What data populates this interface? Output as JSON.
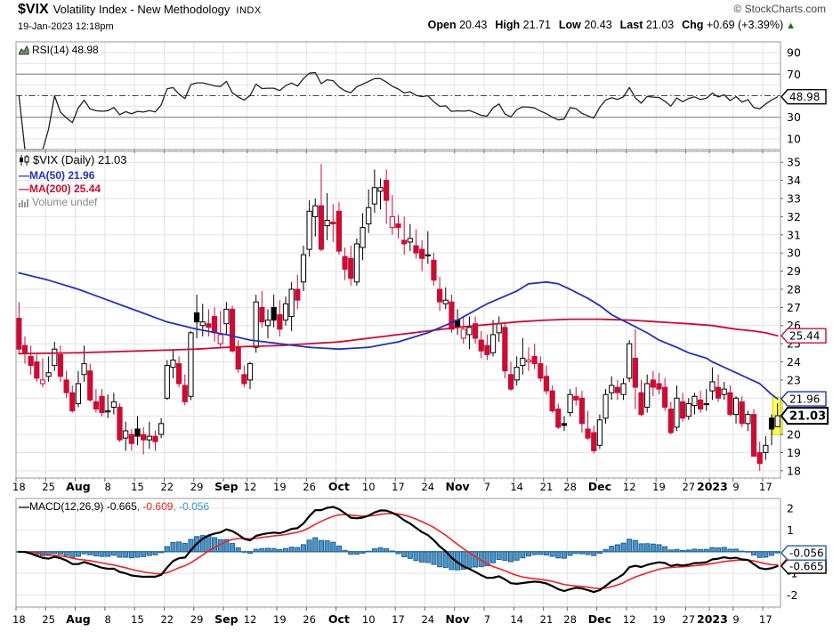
{
  "header": {
    "symbol": "$VIX",
    "title": "Volatility Index - New Methodology",
    "exchange": "INDX",
    "timestamp": "19-Jan-2023 12:18pm",
    "copyright": "© StockCharts.com",
    "quote": {
      "open_label": "Open",
      "open": "20.43",
      "high_label": "High",
      "high": "21.71",
      "low_label": "Low",
      "low": "20.43",
      "last_label": "Last",
      "last": "21.03",
      "chg_label": "Chg",
      "chg": "+0.69 (+3.39%)",
      "arrow": "▲"
    }
  },
  "rsi_panel": {
    "legend": "RSI(14) 48.98",
    "last": "48.98"
  },
  "main_panel": {
    "legend_symbol": "$VIX (Daily) 21.03",
    "legend_ma50": "MA(50) 21.96",
    "legend_ma200": "MA(200) 25.44",
    "legend_volume": "Volume undef",
    "last": "21.03",
    "ma50_last": "21.96",
    "ma200_last": "25.44"
  },
  "macd_panel": {
    "legend_label": "MACD(12,26,9)",
    "macd_last": "-0.665",
    "signal_last": "-0.609",
    "hist_last": "-0.056",
    "sep": ", "
  },
  "colors": {
    "red": "#cc0c35",
    "black": "#000000",
    "blue": "#2233bb",
    "gray": "#888888",
    "grid": "#e2e2e2",
    "frame": "#999999",
    "rsi_band": "#999999",
    "hist_fill": "#4f94c4",
    "hist_stroke": "#1f6397",
    "macd_zero": "#3a7fae",
    "signal_red": "#ee2222",
    "highlight": "#ffff55",
    "highlight_edge": "#cccc00",
    "green": "#0b7a00"
  },
  "chart_data": {
    "type": "candlestick+indicators",
    "symbol": "$VIX",
    "timeframe": "Daily",
    "price_range": [
      17.6,
      35.6
    ],
    "rsi_range": [
      0,
      100
    ],
    "macd_range": [
      -2.55,
      2.45
    ],
    "price_ticks": [
      35,
      34,
      33,
      32,
      31,
      30,
      29,
      28,
      27,
      26,
      25,
      24,
      23,
      22,
      21,
      20,
      19,
      18
    ],
    "rsi_ticks": [
      90,
      70,
      30,
      10
    ],
    "rsi_lines": {
      "overbought": 70,
      "oversold": 30,
      "mid": 50
    },
    "macd_ticks": [
      2,
      1,
      -1,
      -2
    ],
    "axis_labels": {
      "rsi": "48.98",
      "ma200": "25.44",
      "ma50": "21.96",
      "last": "21.03",
      "hist": "-0.056",
      "signal": "-0.609",
      "macd": "-0.665"
    },
    "indicator_params": {
      "rsi": 14,
      "ma_fast": 50,
      "ma_slow": 200,
      "macd": [
        12,
        26,
        9
      ]
    },
    "highlight_last": true,
    "xticks": [
      {
        "i": 0,
        "label": "18",
        "bold": false
      },
      {
        "i": 5,
        "label": "25",
        "bold": false
      },
      {
        "i": 10,
        "label": "Aug",
        "bold": true
      },
      {
        "i": 15,
        "label": "8",
        "bold": false
      },
      {
        "i": 20,
        "label": "15",
        "bold": false
      },
      {
        "i": 25,
        "label": "22",
        "bold": false
      },
      {
        "i": 30,
        "label": "29",
        "bold": false
      },
      {
        "i": 35,
        "label": "Sep",
        "bold": true
      },
      {
        "i": 39,
        "label": "12",
        "bold": false
      },
      {
        "i": 44,
        "label": "19",
        "bold": false
      },
      {
        "i": 49,
        "label": "26",
        "bold": false
      },
      {
        "i": 54,
        "label": "Oct",
        "bold": true
      },
      {
        "i": 59,
        "label": "10",
        "bold": false
      },
      {
        "i": 64,
        "label": "17",
        "bold": false
      },
      {
        "i": 69,
        "label": "24",
        "bold": false
      },
      {
        "i": 74,
        "label": "Nov",
        "bold": true
      },
      {
        "i": 79,
        "label": "7",
        "bold": false
      },
      {
        "i": 84,
        "label": "14",
        "bold": false
      },
      {
        "i": 89,
        "label": "21",
        "bold": false
      },
      {
        "i": 93,
        "label": "28",
        "bold": false
      },
      {
        "i": 98,
        "label": "Dec",
        "bold": true
      },
      {
        "i": 103,
        "label": "12",
        "bold": false
      },
      {
        "i": 108,
        "label": "19",
        "bold": false
      },
      {
        "i": 113,
        "label": "27",
        "bold": false
      },
      {
        "i": 117,
        "label": "2023",
        "bold": true
      },
      {
        "i": 121,
        "label": "9",
        "bold": false
      },
      {
        "i": 126,
        "label": "17",
        "bold": false
      }
    ],
    "dates": [
      "07-18",
      "07-19",
      "07-20",
      "07-21",
      "07-22",
      "07-25",
      "07-26",
      "07-27",
      "07-28",
      "07-29",
      "08-01",
      "08-02",
      "08-03",
      "08-04",
      "08-05",
      "08-08",
      "08-09",
      "08-10",
      "08-11",
      "08-12",
      "08-15",
      "08-16",
      "08-17",
      "08-18",
      "08-19",
      "08-22",
      "08-23",
      "08-24",
      "08-25",
      "08-26",
      "08-29",
      "08-30",
      "08-31",
      "09-01",
      "09-02",
      "09-06",
      "09-07",
      "09-08",
      "09-09",
      "09-12",
      "09-13",
      "09-14",
      "09-15",
      "09-16",
      "09-19",
      "09-20",
      "09-21",
      "09-22",
      "09-23",
      "09-26",
      "09-27",
      "09-28",
      "09-29",
      "09-30",
      "10-03",
      "10-04",
      "10-05",
      "10-06",
      "10-07",
      "10-10",
      "10-11",
      "10-12",
      "10-13",
      "10-14",
      "10-17",
      "10-18",
      "10-19",
      "10-20",
      "10-21",
      "10-24",
      "10-25",
      "10-26",
      "10-27",
      "10-28",
      "10-31",
      "11-01",
      "11-02",
      "11-03",
      "11-04",
      "11-07",
      "11-08",
      "11-09",
      "11-10",
      "11-11",
      "11-14",
      "11-15",
      "11-16",
      "11-17",
      "11-18",
      "11-21",
      "11-22",
      "11-23",
      "11-25",
      "11-28",
      "11-29",
      "11-30",
      "12-01",
      "12-02",
      "12-05",
      "12-06",
      "12-07",
      "12-08",
      "12-09",
      "12-12",
      "12-13",
      "12-14",
      "12-15",
      "12-16",
      "12-19",
      "12-20",
      "12-21",
      "12-22",
      "12-23",
      "12-27",
      "12-28",
      "12-29",
      "12-30",
      "01-03",
      "01-04",
      "01-05",
      "01-06",
      "01-09",
      "01-10",
      "01-11",
      "01-12",
      "01-13",
      "01-17",
      "01-18",
      "01-19"
    ],
    "ohlc": [
      [
        26.4,
        27.3,
        24.4,
        24.7
      ],
      [
        24.9,
        25.4,
        23.9,
        24.5
      ],
      [
        24.3,
        24.9,
        23.3,
        23.8
      ],
      [
        24.0,
        24.4,
        22.9,
        23.1
      ],
      [
        22.8,
        24.2,
        22.6,
        23.0
      ],
      [
        23.2,
        24.3,
        22.9,
        23.4
      ],
      [
        23.8,
        25.1,
        23.5,
        24.7
      ],
      [
        24.4,
        24.9,
        22.9,
        23.2
      ],
      [
        23.0,
        23.5,
        22.0,
        22.3
      ],
      [
        22.3,
        22.7,
        21.2,
        21.3
      ],
      [
        21.7,
        23.5,
        21.5,
        22.8
      ],
      [
        23.3,
        24.9,
        22.9,
        23.9
      ],
      [
        23.5,
        23.9,
        21.8,
        21.9
      ],
      [
        21.8,
        22.5,
        21.2,
        21.4
      ],
      [
        22.1,
        22.5,
        21.0,
        21.2
      ],
      [
        21.3,
        22.2,
        20.9,
        21.3
      ],
      [
        21.5,
        22.3,
        21.1,
        21.8
      ],
      [
        21.5,
        21.7,
        19.6,
        19.7
      ],
      [
        19.8,
        20.7,
        19.1,
        20.2
      ],
      [
        20.0,
        20.3,
        19.1,
        19.5
      ],
      [
        20.3,
        21.0,
        19.4,
        19.9
      ],
      [
        20.0,
        20.4,
        18.9,
        19.7
      ],
      [
        19.7,
        20.7,
        19.2,
        19.9
      ],
      [
        19.9,
        20.2,
        19.1,
        19.6
      ],
      [
        20.0,
        20.9,
        19.8,
        20.6
      ],
      [
        22.0,
        24.1,
        21.9,
        23.8
      ],
      [
        23.7,
        24.7,
        23.1,
        24.1
      ],
      [
        23.9,
        24.3,
        22.6,
        22.8
      ],
      [
        22.7,
        23.3,
        21.6,
        21.8
      ],
      [
        22.1,
        25.7,
        21.9,
        25.6
      ],
      [
        26.7,
        27.7,
        25.3,
        26.2
      ],
      [
        26.0,
        27.2,
        25.4,
        26.2
      ],
      [
        26.1,
        26.9,
        25.4,
        25.9
      ],
      [
        26.5,
        27.0,
        25.1,
        25.6
      ],
      [
        25.0,
        26.8,
        24.8,
        25.5
      ],
      [
        26.1,
        27.3,
        25.5,
        26.9
      ],
      [
        26.9,
        27.1,
        24.5,
        24.6
      ],
      [
        24.8,
        25.2,
        23.4,
        23.6
      ],
      [
        23.3,
        23.8,
        22.6,
        22.8
      ],
      [
        23.0,
        24.0,
        22.5,
        23.9
      ],
      [
        24.8,
        27.7,
        24.5,
        27.3
      ],
      [
        27.0,
        27.9,
        25.9,
        26.2
      ],
      [
        26.0,
        26.9,
        25.3,
        26.3
      ],
      [
        27.0,
        27.7,
        25.9,
        26.3
      ],
      [
        26.6,
        27.4,
        25.4,
        25.8
      ],
      [
        26.3,
        27.6,
        26.0,
        27.2
      ],
      [
        26.5,
        28.4,
        25.7,
        28.0
      ],
      [
        28.0,
        28.8,
        26.9,
        27.4
      ],
      [
        28.4,
        30.4,
        27.9,
        29.9
      ],
      [
        30.2,
        32.9,
        29.8,
        32.3
      ],
      [
        32.0,
        33.0,
        30.9,
        32.6
      ],
      [
        32.6,
        34.9,
        30.1,
        30.2
      ],
      [
        31.5,
        33.3,
        30.7,
        31.8
      ],
      [
        31.7,
        32.7,
        30.6,
        31.6
      ],
      [
        32.3,
        32.8,
        29.9,
        30.1
      ],
      [
        29.8,
        30.3,
        28.5,
        29.1
      ],
      [
        29.7,
        30.4,
        28.2,
        28.6
      ],
      [
        28.4,
        30.8,
        28.2,
        30.5
      ],
      [
        30.3,
        32.2,
        29.6,
        31.4
      ],
      [
        31.6,
        33.5,
        31.1,
        32.5
      ],
      [
        32.7,
        34.6,
        32.2,
        33.6
      ],
      [
        33.4,
        34.1,
        32.4,
        33.6
      ],
      [
        34.0,
        34.6,
        31.6,
        32.9
      ],
      [
        31.4,
        33.2,
        31.0,
        32.0
      ],
      [
        31.6,
        32.1,
        30.8,
        31.4
      ],
      [
        30.7,
        32.0,
        29.9,
        30.5
      ],
      [
        30.6,
        31.6,
        30.1,
        30.8
      ],
      [
        30.4,
        31.3,
        29.7,
        30.0
      ],
      [
        30.2,
        30.7,
        29.0,
        29.7
      ],
      [
        29.9,
        31.2,
        29.4,
        29.9
      ],
      [
        29.6,
        30.0,
        28.2,
        28.5
      ],
      [
        28.0,
        28.7,
        26.8,
        27.3
      ],
      [
        27.2,
        28.1,
        26.9,
        27.4
      ],
      [
        27.3,
        27.7,
        25.6,
        25.8
      ],
      [
        26.3,
        26.9,
        25.5,
        25.9
      ],
      [
        25.3,
        26.5,
        25.0,
        25.8
      ],
      [
        25.5,
        26.5,
        24.7,
        25.9
      ],
      [
        26.1,
        26.5,
        25.0,
        25.3
      ],
      [
        25.2,
        25.7,
        24.2,
        24.6
      ],
      [
        24.9,
        25.5,
        24.1,
        24.4
      ],
      [
        24.5,
        26.3,
        24.3,
        25.5
      ],
      [
        25.6,
        26.5,
        25.1,
        26.1
      ],
      [
        25.9,
        26.2,
        23.1,
        23.5
      ],
      [
        23.3,
        24.0,
        22.4,
        22.5
      ],
      [
        23.0,
        24.3,
        22.7,
        23.7
      ],
      [
        23.8,
        25.3,
        23.3,
        24.2
      ],
      [
        24.0,
        24.8,
        23.5,
        24.1
      ],
      [
        24.3,
        25.0,
        23.6,
        23.9
      ],
      [
        23.9,
        24.3,
        22.9,
        23.1
      ],
      [
        23.2,
        23.8,
        22.2,
        22.4
      ],
      [
        22.4,
        22.7,
        21.2,
        21.3
      ],
      [
        21.4,
        21.7,
        20.3,
        20.4
      ],
      [
        20.6,
        21.0,
        20.2,
        20.5
      ],
      [
        21.2,
        22.5,
        21.0,
        22.2
      ],
      [
        22.1,
        22.6,
        21.6,
        21.9
      ],
      [
        22.0,
        22.4,
        20.1,
        20.6
      ],
      [
        20.3,
        21.3,
        19.7,
        19.8
      ],
      [
        20.1,
        20.5,
        18.95,
        19.1
      ],
      [
        19.4,
        21.1,
        19.2,
        20.8
      ],
      [
        20.9,
        22.5,
        20.6,
        22.2
      ],
      [
        22.3,
        23.2,
        21.9,
        22.7
      ],
      [
        22.6,
        23.0,
        21.9,
        22.3
      ],
      [
        22.2,
        23.1,
        21.9,
        22.8
      ],
      [
        23.1,
        25.2,
        22.9,
        25.0
      ],
      [
        24.2,
        25.8,
        21.4,
        22.6
      ],
      [
        22.3,
        23.0,
        21.0,
        21.1
      ],
      [
        21.5,
        23.3,
        21.2,
        22.8
      ],
      [
        23.0,
        23.5,
        22.1,
        22.6
      ],
      [
        22.8,
        23.4,
        22.2,
        22.5
      ],
      [
        22.6,
        23.1,
        21.3,
        21.5
      ],
      [
        21.4,
        21.8,
        20.0,
        20.1
      ],
      [
        20.4,
        22.7,
        20.2,
        22.0
      ],
      [
        21.8,
        22.3,
        20.7,
        20.9
      ],
      [
        21.0,
        22.0,
        20.8,
        21.7
      ],
      [
        21.6,
        22.3,
        21.1,
        22.1
      ],
      [
        21.9,
        22.4,
        21.2,
        21.4
      ],
      [
        21.7,
        22.5,
        21.3,
        21.7
      ],
      [
        22.4,
        23.7,
        21.9,
        22.9
      ],
      [
        22.6,
        23.3,
        21.8,
        22.0
      ],
      [
        22.2,
        22.9,
        21.9,
        22.5
      ],
      [
        22.3,
        22.7,
        21.0,
        21.1
      ],
      [
        21.1,
        22.1,
        20.6,
        22.0
      ],
      [
        21.8,
        22.1,
        20.4,
        20.6
      ],
      [
        20.6,
        21.3,
        20.2,
        21.1
      ],
      [
        21.1,
        21.4,
        18.8,
        18.8
      ],
      [
        19.0,
        19.6,
        18.0,
        18.4
      ],
      [
        19.0,
        19.9,
        18.6,
        19.4
      ],
      [
        20.9,
        21.1,
        19.4,
        20.3
      ],
      [
        20.43,
        21.71,
        20.43,
        21.03
      ]
    ],
    "ma50_anchors": [
      [
        0,
        28.9
      ],
      [
        5,
        28.5
      ],
      [
        10,
        28.0
      ],
      [
        15,
        27.4
      ],
      [
        20,
        26.8
      ],
      [
        25,
        26.2
      ],
      [
        30,
        25.8
      ],
      [
        35,
        25.5
      ],
      [
        39,
        25.2
      ],
      [
        44,
        25.0
      ],
      [
        49,
        24.8
      ],
      [
        54,
        24.7
      ],
      [
        59,
        24.8
      ],
      [
        64,
        25.1
      ],
      [
        69,
        25.6
      ],
      [
        74,
        26.3
      ],
      [
        79,
        27.2
      ],
      [
        84,
        27.9
      ],
      [
        86,
        28.3
      ],
      [
        89,
        28.4
      ],
      [
        91,
        28.3
      ],
      [
        93,
        28.0
      ],
      [
        96,
        27.5
      ],
      [
        98,
        27.1
      ],
      [
        100,
        26.6
      ],
      [
        103,
        26.1
      ],
      [
        106,
        25.6
      ],
      [
        108,
        25.2
      ],
      [
        111,
        24.8
      ],
      [
        113,
        24.5
      ],
      [
        116,
        24.2
      ],
      [
        117,
        24.0
      ],
      [
        119,
        23.7
      ],
      [
        121,
        23.4
      ],
      [
        123,
        23.1
      ],
      [
        125,
        22.8
      ],
      [
        126,
        22.5
      ],
      [
        127,
        22.2
      ],
      [
        128,
        21.96
      ]
    ],
    "ma200_anchors": [
      [
        0,
        24.45
      ],
      [
        10,
        24.5
      ],
      [
        20,
        24.6
      ],
      [
        30,
        24.7
      ],
      [
        35,
        24.8
      ],
      [
        39,
        24.85
      ],
      [
        44,
        24.9
      ],
      [
        49,
        25.0
      ],
      [
        54,
        25.1
      ],
      [
        59,
        25.3
      ],
      [
        64,
        25.5
      ],
      [
        69,
        25.7
      ],
      [
        74,
        25.9
      ],
      [
        79,
        26.05
      ],
      [
        84,
        26.2
      ],
      [
        89,
        26.3
      ],
      [
        93,
        26.35
      ],
      [
        98,
        26.35
      ],
      [
        103,
        26.3
      ],
      [
        108,
        26.2
      ],
      [
        113,
        26.1
      ],
      [
        117,
        26.0
      ],
      [
        121,
        25.8
      ],
      [
        124,
        25.7
      ],
      [
        126,
        25.6
      ],
      [
        128,
        25.44
      ]
    ]
  }
}
